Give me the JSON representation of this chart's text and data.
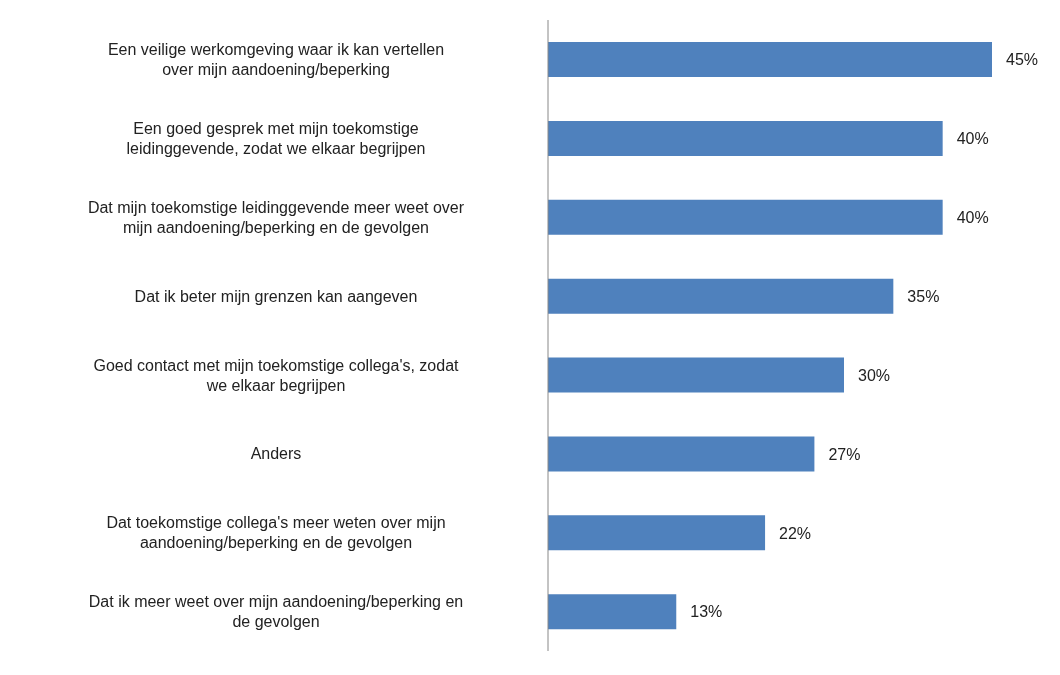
{
  "chart_data": {
    "type": "bar",
    "orientation": "horizontal",
    "categories": [
      "Een veilige werkomgeving waar ik kan vertellen over mijn aandoening/beperking",
      "Een goed gesprek met mijn toekomstige leidinggevende, zodat we elkaar begrijpen",
      "Dat mijn toekomstige leidinggevende meer weet over mijn aandoening/beperking en de gevolgen",
      "Dat ik beter mijn grenzen kan aangeven",
      "Goed contact met mijn toekomstige collega's, zodat we elkaar begrijpen",
      "Anders",
      "Dat toekomstige collega's meer weten over mijn aandoening/beperking en de gevolgen",
      "Dat ik meer weet over mijn aandoening/beperking en de gevolgen"
    ],
    "values": [
      45,
      40,
      40,
      35,
      30,
      27,
      22,
      13
    ],
    "value_labels": [
      "45%",
      "40%",
      "40%",
      "35%",
      "30%",
      "27%",
      "22%",
      "13%"
    ],
    "color": "#4f81bd",
    "grid": false,
    "legend": false
  }
}
